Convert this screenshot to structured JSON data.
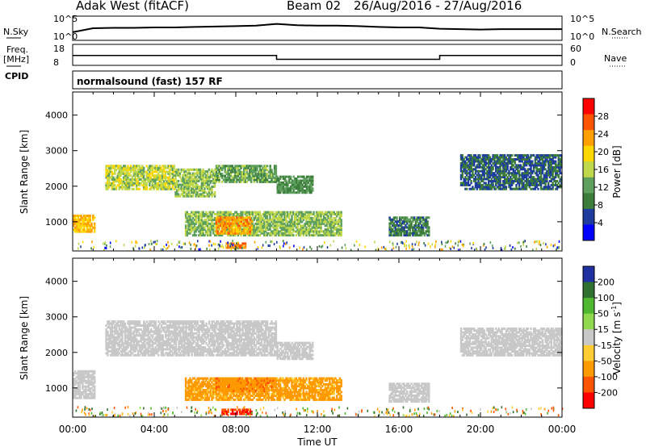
{
  "header": {
    "station": "Adak West (fitACF)",
    "beam": "Beam 02",
    "date_range": "26/Aug/2016 - 27/Aug/2016"
  },
  "side_labels": {
    "nsky": "N.Sky",
    "nsearch": "N.Search",
    "freq": "Freq.",
    "freq_unit": "[MHz]",
    "nave": "Nave",
    "cpid": "CPID",
    "cpid_value": "normalsound (fast) 157 RF"
  },
  "top_ticks": {
    "nsky_left": [
      "10^5",
      "10^0"
    ],
    "nsky_right": [
      "10^5",
      "10^0"
    ],
    "freq_left": [
      "18",
      "8"
    ],
    "nave_right": [
      "60",
      "0"
    ]
  },
  "colors": {
    "power_scale": [
      "#0000ff",
      "#1e3c9e",
      "#3c7d3c",
      "#5fa05f",
      "#bfd74a",
      "#ffd700",
      "#ff9f00",
      "#ff5500",
      "#ff0000"
    ],
    "velocity_scale": [
      "#2030a0",
      "#2f6f2f",
      "#50b830",
      "#90d850",
      "#c8c8c8",
      "#ffcc33",
      "#ff9900",
      "#ff5500",
      "#ff0000"
    ],
    "ground_scatter": "#c8c8c8"
  },
  "chart_data": [
    {
      "type": "line",
      "panel": "nsky",
      "ylabel": "N.Sky",
      "ylim": [
        0,
        5
      ],
      "yscale": "log",
      "x": [
        0,
        1,
        2,
        3,
        4,
        5,
        6,
        7,
        8,
        9,
        10,
        11,
        12,
        13,
        14,
        15,
        16,
        17,
        18,
        19,
        20,
        21,
        22,
        23,
        24
      ],
      "values": [
        1.5,
        2.4,
        2.5,
        2.5,
        2.6,
        2.6,
        2.7,
        2.8,
        2.9,
        3.0,
        3.4,
        3.1,
        3.0,
        3.0,
        2.9,
        2.7,
        2.6,
        2.6,
        2.3,
        2.2,
        2.1,
        2.2,
        2.2,
        2.2,
        2.2
      ]
    },
    {
      "type": "line",
      "panel": "freq",
      "ylabel": "Freq. [MHz]",
      "ylim": [
        8,
        18
      ],
      "x": [
        0,
        10,
        10,
        18,
        18,
        24
      ],
      "values": [
        12.7,
        12.7,
        10.7,
        10.7,
        12.7,
        12.7
      ]
    },
    {
      "type": "heatmap",
      "panel": "power",
      "ylabel": "Slant Range [km]",
      "xlabel": "",
      "xlim": [
        0,
        24
      ],
      "ylim": [
        180,
        4650
      ],
      "yticks": [
        1000,
        2000,
        3000,
        4000
      ],
      "colorbar": {
        "label": "Power [dB]",
        "ticks": [
          4,
          8,
          12,
          16,
          20,
          24,
          28
        ]
      },
      "regions": [
        {
          "t0": 0.0,
          "t1": 1.1,
          "r0": 700,
          "r1": 1200,
          "value": 22
        },
        {
          "t0": 1.6,
          "t1": 5.0,
          "r0": 1900,
          "r1": 2600,
          "value": 16
        },
        {
          "t0": 5.0,
          "t1": 7.0,
          "r0": 1700,
          "r1": 2500,
          "value": 14
        },
        {
          "t0": 7.0,
          "t1": 10.0,
          "r0": 2100,
          "r1": 2600,
          "value": 12
        },
        {
          "t0": 5.5,
          "t1": 13.2,
          "r0": 600,
          "r1": 1300,
          "value": 14
        },
        {
          "t0": 7.0,
          "t1": 8.8,
          "r0": 650,
          "r1": 1150,
          "value": 24
        },
        {
          "t0": 7.5,
          "t1": 8.5,
          "r0": 250,
          "r1": 420,
          "value": 26
        },
        {
          "t0": 10.0,
          "t1": 11.8,
          "r0": 1800,
          "r1": 2300,
          "value": 10
        },
        {
          "t0": 15.5,
          "t1": 17.5,
          "r0": 600,
          "r1": 1150,
          "value": 8
        },
        {
          "t0": 19.0,
          "t1": 24.0,
          "r0": 1900,
          "r1": 2900,
          "value": 6
        }
      ]
    },
    {
      "type": "heatmap",
      "panel": "velocity",
      "ylabel": "Slant Range [km]",
      "xlabel": "Time UT",
      "xlim": [
        0,
        24
      ],
      "ylim": [
        180,
        4650
      ],
      "yticks": [
        1000,
        2000,
        3000,
        4000
      ],
      "xticks": [
        "00:00",
        "04:00",
        "08:00",
        "12:00",
        "16:00",
        "20:00",
        "00:00"
      ],
      "colorbar": {
        "label": "Velocity [m s-1]",
        "ticks": [
          200,
          100,
          50,
          15,
          -15,
          -50,
          -100,
          -200
        ]
      },
      "regions": [
        {
          "t0": 0.0,
          "t1": 1.1,
          "r0": 700,
          "r1": 1500,
          "value": 0
        },
        {
          "t0": 1.6,
          "t1": 10.0,
          "r0": 1900,
          "r1": 2900,
          "value": 0
        },
        {
          "t0": 5.5,
          "t1": 13.2,
          "r0": 650,
          "r1": 1300,
          "value": -60
        },
        {
          "t0": 7.0,
          "t1": 10.0,
          "r0": 900,
          "r1": 1300,
          "value": -90
        },
        {
          "t0": 7.3,
          "t1": 8.8,
          "r0": 250,
          "r1": 420,
          "value": -150
        },
        {
          "t0": 10.0,
          "t1": 11.8,
          "r0": 1800,
          "r1": 2300,
          "value": 0
        },
        {
          "t0": 15.5,
          "t1": 17.5,
          "r0": 600,
          "r1": 1150,
          "value": 0
        },
        {
          "t0": 19.0,
          "t1": 24.0,
          "r0": 1900,
          "r1": 2700,
          "value": 0
        }
      ]
    }
  ]
}
